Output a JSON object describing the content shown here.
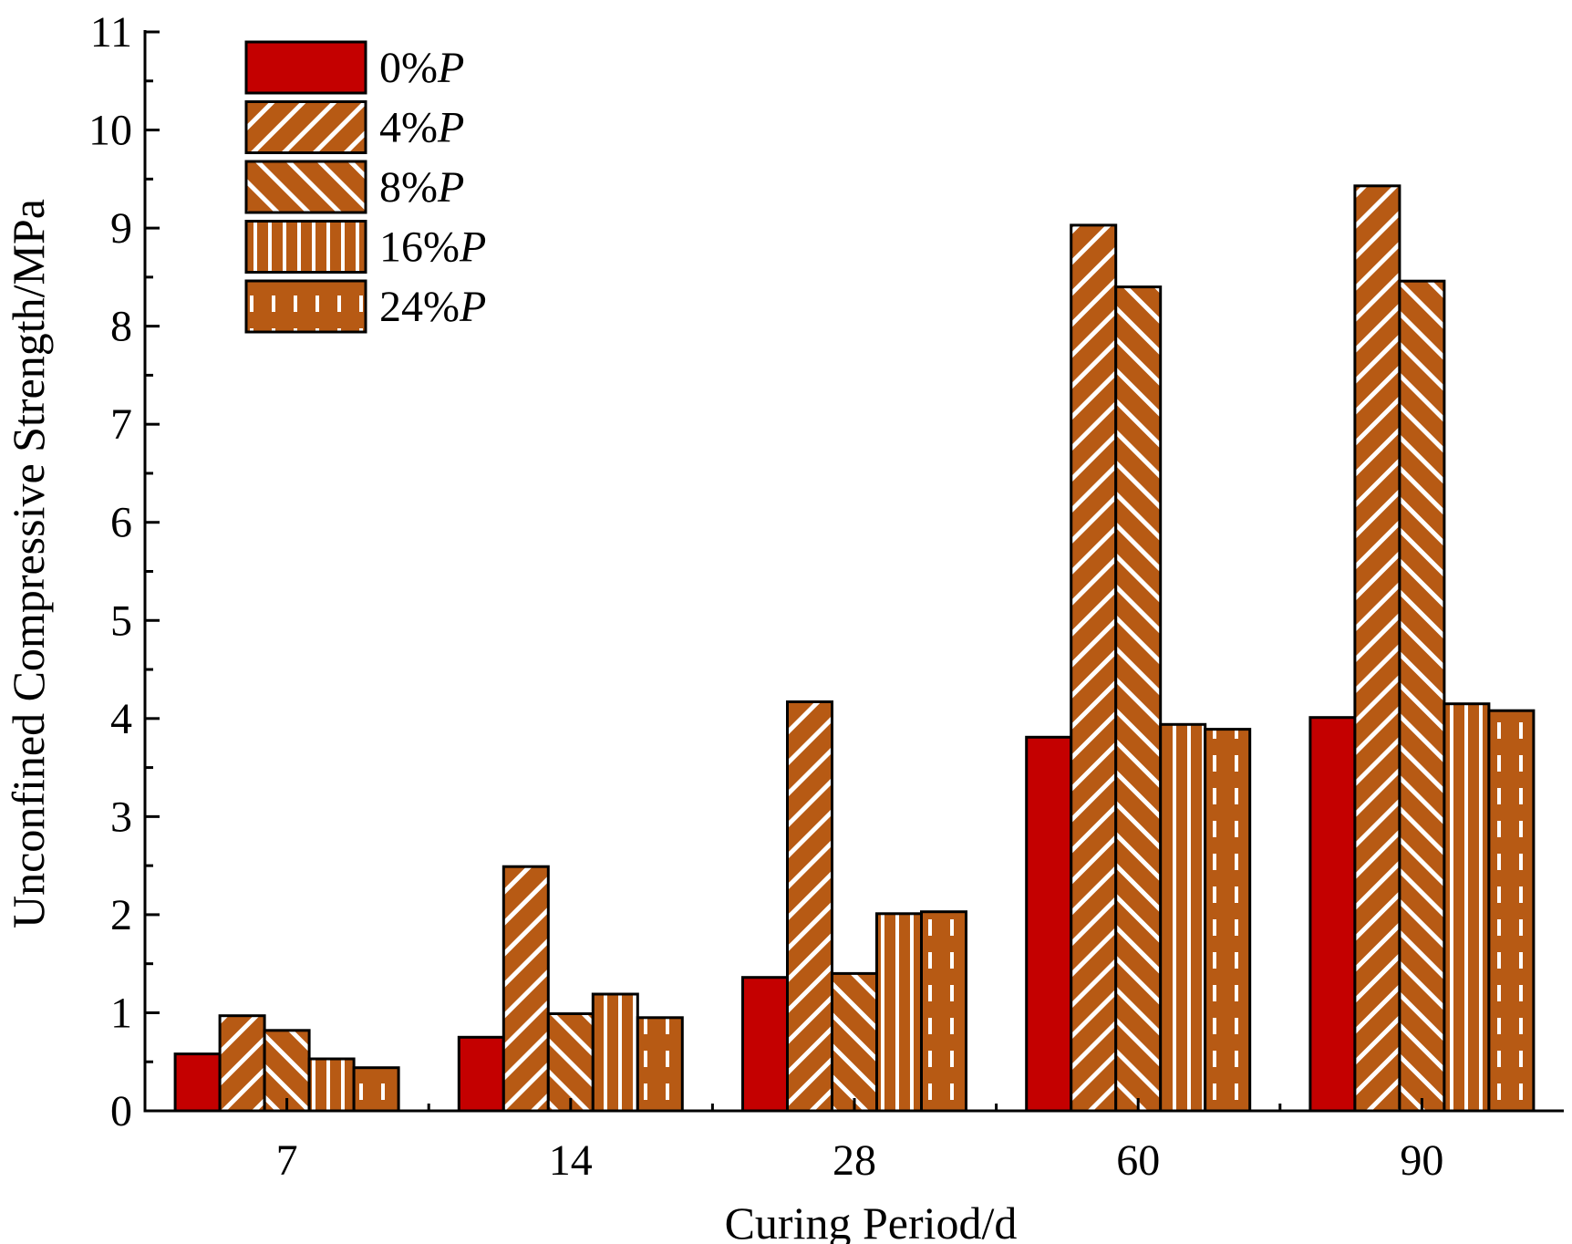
{
  "chart_data": {
    "type": "bar",
    "title": "",
    "xlabel": "Curing Period/d",
    "ylabel": "Unconfined Compressive Strength/MPa",
    "categories": [
      "7",
      "14",
      "28",
      "60",
      "90"
    ],
    "ylim": [
      0,
      11
    ],
    "yticks": [
      "0",
      "1",
      "2",
      "3",
      "4",
      "5",
      "6",
      "7",
      "8",
      "9",
      "10",
      "11"
    ],
    "legend_position": "top-left",
    "series": [
      {
        "name": "0%P",
        "legend_prefix": "0%",
        "legend_italic": "P",
        "pattern": "solid",
        "color": "#c40000",
        "values": [
          0.58,
          0.75,
          1.36,
          3.81,
          4.01
        ]
      },
      {
        "name": "4%P",
        "legend_prefix": "4%",
        "legend_italic": "P",
        "pattern": "forward-diagonal",
        "color": "#b75a14",
        "values": [
          0.97,
          2.49,
          4.17,
          9.03,
          9.43
        ]
      },
      {
        "name": "8%P",
        "legend_prefix": "8%",
        "legend_italic": "P",
        "pattern": "backward-diagonal",
        "color": "#b75a14",
        "values": [
          0.82,
          0.99,
          1.4,
          8.4,
          8.46
        ]
      },
      {
        "name": "16%P",
        "legend_prefix": "16%",
        "legend_italic": "P",
        "pattern": "vertical",
        "color": "#b75a14",
        "values": [
          0.53,
          1.19,
          2.01,
          3.94,
          4.15
        ]
      },
      {
        "name": "24%P",
        "legend_prefix": "24%",
        "legend_italic": "P",
        "pattern": "dashed-vertical",
        "color": "#b75a14",
        "values": [
          0.44,
          0.95,
          2.03,
          3.89,
          4.08
        ]
      }
    ]
  }
}
